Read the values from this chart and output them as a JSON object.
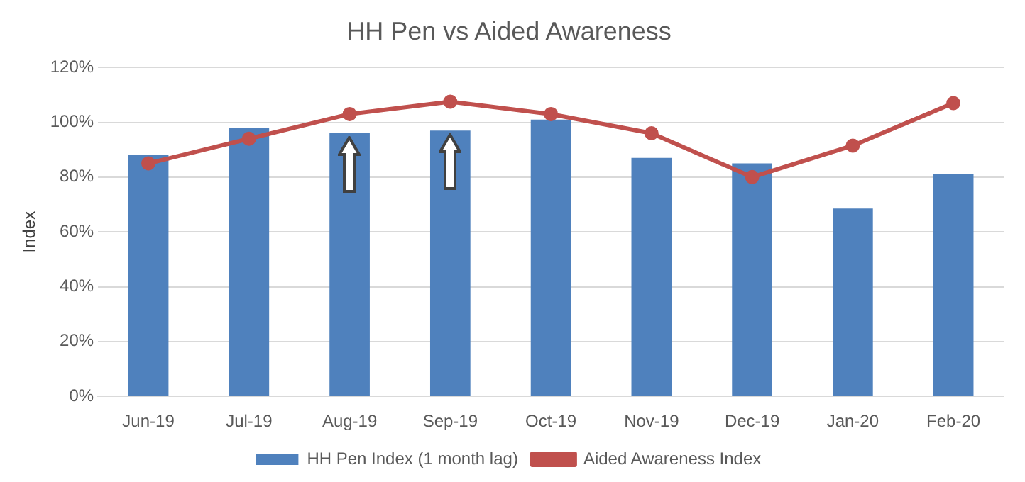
{
  "chart_data": {
    "type": "bar",
    "title": "HH Pen vs Aided Awareness",
    "ylabel": "Index",
    "categories": [
      "Jun-19",
      "Jul-19",
      "Aug-19",
      "Sep-19",
      "Oct-19",
      "Nov-19",
      "Dec-19",
      "Jan-20",
      "Feb-20"
    ],
    "series": [
      {
        "name": "HH Pen Index (1 month lag)",
        "color": "#4f81bd",
        "values": [
          88,
          98,
          96,
          97,
          101,
          87,
          85,
          68.5,
          81
        ]
      },
      {
        "name": "Aided Awareness Index",
        "type": "line",
        "color": "#c0504d",
        "values": [
          85,
          94,
          103,
          107.5,
          103,
          96,
          80,
          91.5,
          107
        ]
      }
    ],
    "ylim": [
      0,
      120
    ],
    "yticks": [
      {
        "value": 0,
        "label": "0%"
      },
      {
        "value": 20,
        "label": "20%"
      },
      {
        "value": 40,
        "label": "40%"
      },
      {
        "value": 60,
        "label": "60%"
      },
      {
        "value": 80,
        "label": "80%"
      },
      {
        "value": 100,
        "label": "100%"
      },
      {
        "value": 120,
        "label": "120%"
      }
    ],
    "grid": "y",
    "legend": "bottom",
    "marker": "circle",
    "line_style": "solid"
  }
}
